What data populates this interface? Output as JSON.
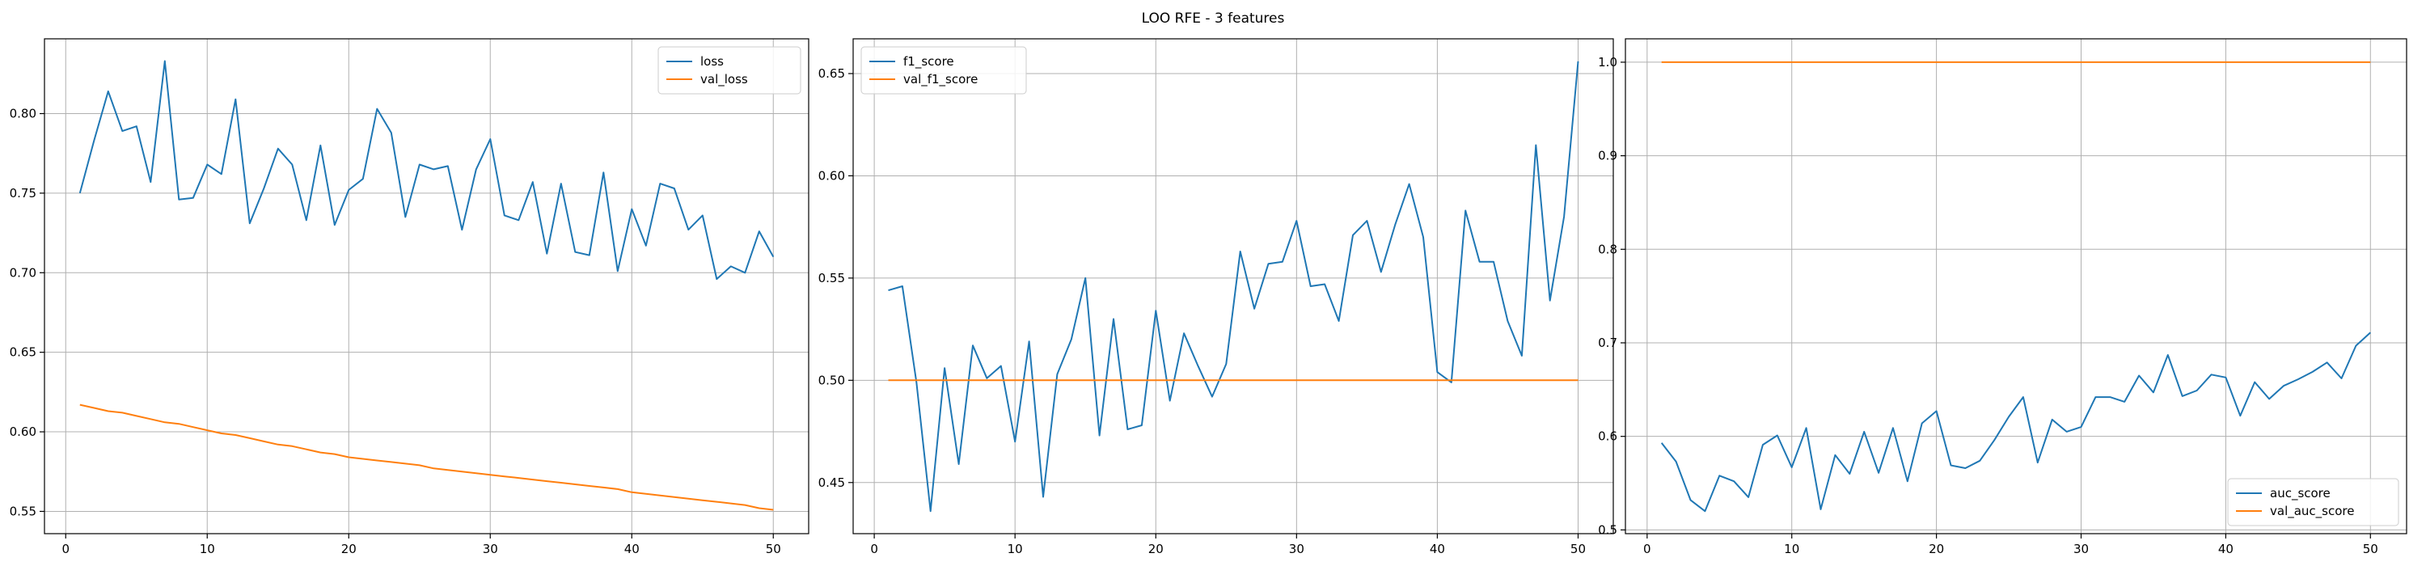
{
  "figure": {
    "title": "LOO RFE - 3 features"
  },
  "colors": {
    "series1": "#1f77b4",
    "series2": "#ff7f0e",
    "grid": "#b0b0b0",
    "axis": "#000000"
  },
  "chart_data": [
    {
      "type": "line",
      "x": [
        1,
        2,
        3,
        4,
        5,
        6,
        7,
        8,
        9,
        10,
        11,
        12,
        13,
        14,
        15,
        16,
        17,
        18,
        19,
        20,
        21,
        22,
        23,
        24,
        25,
        26,
        27,
        28,
        29,
        30,
        31,
        32,
        33,
        34,
        35,
        36,
        37,
        38,
        39,
        40,
        41,
        42,
        43,
        44,
        45,
        46,
        47,
        48,
        49,
        50
      ],
      "series": [
        {
          "name": "loss",
          "values": [
            0.75,
            0.783,
            0.814,
            0.789,
            0.792,
            0.757,
            0.833,
            0.746,
            0.747,
            0.768,
            0.762,
            0.809,
            0.731,
            0.753,
            0.778,
            0.768,
            0.733,
            0.78,
            0.73,
            0.752,
            0.759,
            0.803,
            0.788,
            0.735,
            0.768,
            0.765,
            0.767,
            0.727,
            0.765,
            0.784,
            0.736,
            0.733,
            0.757,
            0.712,
            0.756,
            0.713,
            0.711,
            0.763,
            0.701,
            0.74,
            0.717,
            0.756,
            0.753,
            0.727,
            0.736,
            0.696,
            0.704,
            0.7,
            0.726,
            0.71
          ]
        },
        {
          "name": "val_loss",
          "values": [
            0.617,
            0.615,
            0.613,
            0.612,
            0.61,
            0.608,
            0.606,
            0.605,
            0.603,
            0.601,
            0.599,
            0.598,
            0.596,
            0.594,
            0.592,
            0.591,
            0.589,
            0.587,
            0.586,
            0.584,
            0.583,
            0.582,
            0.581,
            0.58,
            0.579,
            0.577,
            0.576,
            0.575,
            0.574,
            0.573,
            0.572,
            0.571,
            0.57,
            0.569,
            0.568,
            0.567,
            0.566,
            0.565,
            0.564,
            0.562,
            0.561,
            0.56,
            0.559,
            0.558,
            0.557,
            0.556,
            0.555,
            0.554,
            0.552,
            0.551
          ]
        }
      ],
      "xlim": [
        -1.5,
        52.5
      ],
      "ylim": [
        0.536,
        0.847
      ],
      "xticks": [
        0,
        10,
        20,
        30,
        40,
        50
      ],
      "yticks": [
        0.55,
        0.6,
        0.65,
        0.7,
        0.75,
        0.8
      ],
      "ytick_labels": [
        "0.55",
        "0.60",
        "0.65",
        "0.70",
        "0.75",
        "0.80"
      ],
      "grid": true,
      "legend": "upper right"
    },
    {
      "type": "line",
      "x": [
        1,
        2,
        3,
        4,
        5,
        6,
        7,
        8,
        9,
        10,
        11,
        12,
        13,
        14,
        15,
        16,
        17,
        18,
        19,
        20,
        21,
        22,
        23,
        24,
        25,
        26,
        27,
        28,
        29,
        30,
        31,
        32,
        33,
        34,
        35,
        36,
        37,
        38,
        39,
        40,
        41,
        42,
        43,
        44,
        45,
        46,
        47,
        48,
        49,
        50
      ],
      "series": [
        {
          "name": "f1_score",
          "values": [
            0.544,
            0.546,
            0.499,
            0.436,
            0.506,
            0.459,
            0.517,
            0.501,
            0.507,
            0.47,
            0.519,
            0.443,
            0.503,
            0.52,
            0.55,
            0.473,
            0.53,
            0.476,
            0.478,
            0.534,
            0.49,
            0.523,
            0.507,
            0.492,
            0.508,
            0.563,
            0.535,
            0.557,
            0.558,
            0.578,
            0.546,
            0.547,
            0.529,
            0.571,
            0.578,
            0.553,
            0.576,
            0.596,
            0.57,
            0.504,
            0.499,
            0.583,
            0.558,
            0.558,
            0.529,
            0.512,
            0.615,
            0.539,
            0.58,
            0.656
          ]
        },
        {
          "name": "val_f1_score",
          "values": [
            0.5,
            0.5,
            0.5,
            0.5,
            0.5,
            0.5,
            0.5,
            0.5,
            0.5,
            0.5,
            0.5,
            0.5,
            0.5,
            0.5,
            0.5,
            0.5,
            0.5,
            0.5,
            0.5,
            0.5,
            0.5,
            0.5,
            0.5,
            0.5,
            0.5,
            0.5,
            0.5,
            0.5,
            0.5,
            0.5,
            0.5,
            0.5,
            0.5,
            0.5,
            0.5,
            0.5,
            0.5,
            0.5,
            0.5,
            0.5,
            0.5,
            0.5,
            0.5,
            0.5,
            0.5,
            0.5,
            0.5,
            0.5,
            0.5,
            0.5
          ]
        }
      ],
      "xlim": [
        -1.5,
        52.5
      ],
      "ylim": [
        0.425,
        0.667
      ],
      "xticks": [
        0,
        10,
        20,
        30,
        40,
        50
      ],
      "yticks": [
        0.45,
        0.5,
        0.55,
        0.6,
        0.65
      ],
      "ytick_labels": [
        "0.45",
        "0.50",
        "0.55",
        "0.60",
        "0.65"
      ],
      "grid": true,
      "legend": "upper left"
    },
    {
      "type": "line",
      "x": [
        1,
        2,
        3,
        4,
        5,
        6,
        7,
        8,
        9,
        10,
        11,
        12,
        13,
        14,
        15,
        16,
        17,
        18,
        19,
        20,
        21,
        22,
        23,
        24,
        25,
        26,
        27,
        28,
        29,
        30,
        31,
        32,
        33,
        34,
        35,
        36,
        37,
        38,
        39,
        40,
        41,
        42,
        43,
        44,
        45,
        46,
        47,
        48,
        49,
        50
      ],
      "series": [
        {
          "name": "auc_score",
          "values": [
            0.593,
            0.573,
            0.532,
            0.52,
            0.558,
            0.552,
            0.535,
            0.591,
            0.601,
            0.567,
            0.609,
            0.522,
            0.58,
            0.56,
            0.605,
            0.561,
            0.609,
            0.552,
            0.614,
            0.627,
            0.569,
            0.566,
            0.574,
            0.596,
            0.621,
            0.642,
            0.572,
            0.618,
            0.605,
            0.61,
            0.642,
            0.642,
            0.637,
            0.665,
            0.647,
            0.687,
            0.643,
            0.649,
            0.666,
            0.663,
            0.622,
            0.658,
            0.64,
            0.654,
            0.661,
            0.669,
            0.679,
            0.662,
            0.697,
            0.711
          ]
        },
        {
          "name": "val_auc_score",
          "values": [
            1.0,
            1.0,
            1.0,
            1.0,
            1.0,
            1.0,
            1.0,
            1.0,
            1.0,
            1.0,
            1.0,
            1.0,
            1.0,
            1.0,
            1.0,
            1.0,
            1.0,
            1.0,
            1.0,
            1.0,
            1.0,
            1.0,
            1.0,
            1.0,
            1.0,
            1.0,
            1.0,
            1.0,
            1.0,
            1.0,
            1.0,
            1.0,
            1.0,
            1.0,
            1.0,
            1.0,
            1.0,
            1.0,
            1.0,
            1.0,
            1.0,
            1.0,
            1.0,
            1.0,
            1.0,
            1.0,
            1.0,
            1.0,
            1.0,
            1.0
          ]
        }
      ],
      "xlim": [
        -1.5,
        52.5
      ],
      "ylim": [
        0.496,
        1.025
      ],
      "xticks": [
        0,
        10,
        20,
        30,
        40,
        50
      ],
      "yticks": [
        0.5,
        0.6,
        0.7,
        0.8,
        0.9,
        1.0
      ],
      "ytick_labels": [
        "0.5",
        "0.6",
        "0.7",
        "0.8",
        "0.9",
        "1.0"
      ],
      "grid": true,
      "legend": "lower right"
    }
  ]
}
